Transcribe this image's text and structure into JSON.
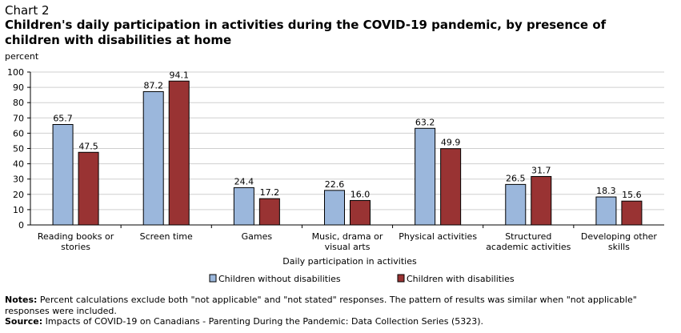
{
  "chart_label": "Chart 2",
  "chart_data": {
    "type": "bar",
    "title": "Children's daily participation in activities during the COVID-19 pandemic, by presence of children with disabilities at home",
    "ylabel": "percent",
    "xlabel": "Daily participation in activities",
    "ylim": [
      0,
      100
    ],
    "yticks": [
      0,
      10,
      20,
      30,
      40,
      50,
      60,
      70,
      80,
      90,
      100
    ],
    "grid": true,
    "legend_position": "bottom",
    "categories": [
      [
        "Reading books or",
        "stories"
      ],
      [
        "Screen time"
      ],
      [
        "Games"
      ],
      [
        "Music, drama or",
        "visual arts"
      ],
      [
        "Physical activities"
      ],
      [
        "Structured",
        "academic activities"
      ],
      [
        "Developing other",
        "skills"
      ]
    ],
    "series": [
      {
        "name": "Children without disabilities",
        "color": "#9bb7dc",
        "values": [
          65.7,
          87.2,
          24.4,
          22.6,
          63.2,
          26.5,
          18.3
        ]
      },
      {
        "name": "Children with disabilities",
        "color": "#993333",
        "values": [
          47.5,
          94.1,
          17.2,
          16.0,
          49.9,
          31.7,
          15.6
        ]
      }
    ]
  },
  "notes": {
    "notes_label": "Notes:",
    "notes_text": " Percent calculations exclude both \"not applicable\" and \"not stated\" responses. The pattern of results was similar when \"not applicable\" responses were included.",
    "source_label": "Source:",
    "source_text": " Impacts of COVID-19 on Canadians - Parenting During the Pandemic: Data Collection Series (5323)."
  }
}
